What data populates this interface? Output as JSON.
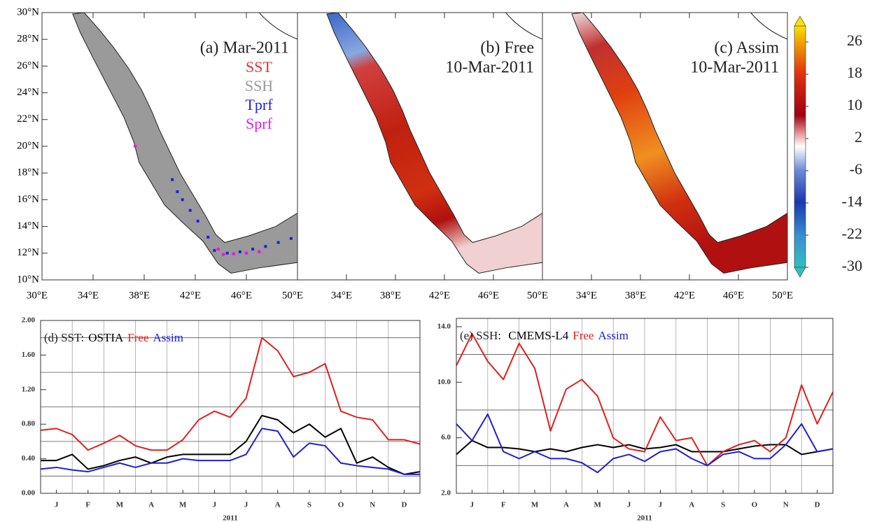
{
  "chart_data": [
    {
      "type": "map",
      "title": "(a) Mar-2011",
      "xlim": [
        30,
        50
      ],
      "ylim": [
        10,
        30
      ],
      "xticks": [
        {
          "value": 30,
          "label": "30°E"
        },
        {
          "value": 34,
          "label": "34°E"
        },
        {
          "value": 38,
          "label": "38°E"
        },
        {
          "value": 42,
          "label": "42°E"
        },
        {
          "value": 46,
          "label": "46°E"
        },
        {
          "value": 50,
          "label": "50°E"
        }
      ],
      "yticks": [
        {
          "value": 10,
          "label": "10°N"
        },
        {
          "value": 12,
          "label": "12°N"
        },
        {
          "value": 14,
          "label": "14°N"
        },
        {
          "value": 16,
          "label": "16°N"
        },
        {
          "value": 18,
          "label": "18°N"
        },
        {
          "value": 20,
          "label": "20°N"
        },
        {
          "value": 22,
          "label": "22°N"
        },
        {
          "value": 24,
          "label": "24°N"
        },
        {
          "value": 26,
          "label": "26°N"
        },
        {
          "value": 28,
          "label": "28°N"
        },
        {
          "value": 30,
          "label": "30°N"
        }
      ],
      "legend": [
        "SST",
        "SSH",
        "Tprf",
        "Sprf"
      ],
      "legend_colors": [
        "#e83030",
        "#9a9a9a",
        "#2020e0",
        "#e020e0"
      ]
    },
    {
      "type": "map",
      "title": "(b) Free",
      "subtitle": "10-Mar-2011",
      "xlim": [
        30,
        50
      ],
      "ylim": [
        10,
        30
      ],
      "xticks": [
        {
          "value": 34,
          "label": "34°E"
        },
        {
          "value": 38,
          "label": "38°E"
        },
        {
          "value": 42,
          "label": "42°E"
        },
        {
          "value": 46,
          "label": "46°E"
        },
        {
          "value": 50,
          "label": "50°E"
        }
      ]
    },
    {
      "type": "map",
      "title": "(c) Assim",
      "subtitle": "10-Mar-2011",
      "xlim": [
        30,
        50
      ],
      "ylim": [
        10,
        30
      ],
      "xticks": [
        {
          "value": 34,
          "label": "34°E"
        },
        {
          "value": 38,
          "label": "38°E"
        },
        {
          "value": 42,
          "label": "42°E"
        },
        {
          "value": 46,
          "label": "46°E"
        },
        {
          "value": 50,
          "label": "50°E"
        }
      ],
      "colorbar": {
        "lim": [
          -30,
          30
        ],
        "ticks": [
          26,
          18,
          10,
          2,
          -6,
          -14,
          -22,
          -30
        ]
      }
    },
    {
      "type": "line",
      "title": "(d) SST:",
      "xlabel": "2011",
      "xlim": [
        0,
        12
      ],
      "ylim": [
        0,
        2
      ],
      "xticks": [
        {
          "value": 0.5,
          "label": "J"
        },
        {
          "value": 1.5,
          "label": "F"
        },
        {
          "value": 2.5,
          "label": "M"
        },
        {
          "value": 3.5,
          "label": "A"
        },
        {
          "value": 4.5,
          "label": "M"
        },
        {
          "value": 5.5,
          "label": "J"
        },
        {
          "value": 6.5,
          "label": "J"
        },
        {
          "value": 7.5,
          "label": "A"
        },
        {
          "value": 8.5,
          "label": "S"
        },
        {
          "value": 9.5,
          "label": "O"
        },
        {
          "value": 10.5,
          "label": "N"
        },
        {
          "value": 11.5,
          "label": "D"
        }
      ],
      "yticks": [
        {
          "value": 0,
          "label": "0.00"
        },
        {
          "value": 0.4,
          "label": "0.40"
        },
        {
          "value": 0.8,
          "label": "0.80"
        },
        {
          "value": 1.2,
          "label": "1.20"
        },
        {
          "value": 1.6,
          "label": "1.60"
        },
        {
          "value": 2,
          "label": "2.00"
        }
      ],
      "ygrid": [
        0.2,
        0.6,
        1,
        1.4,
        1.8
      ],
      "x": [
        0,
        0.5,
        1,
        1.5,
        2,
        2.5,
        3,
        3.5,
        4,
        4.5,
        5,
        5.5,
        6,
        6.5,
        7,
        7.5,
        8,
        8.5,
        9,
        9.5,
        10,
        10.5,
        11,
        11.5,
        12
      ],
      "series": [
        {
          "name": "OSTIA",
          "color": "#000000",
          "values": [
            0.38,
            0.38,
            0.45,
            0.28,
            0.32,
            0.38,
            0.42,
            0.35,
            0.42,
            0.45,
            0.45,
            0.45,
            0.45,
            0.6,
            0.9,
            0.85,
            0.7,
            0.8,
            0.65,
            0.75,
            0.35,
            0.42,
            0.3,
            0.22,
            0.25
          ]
        },
        {
          "name": "Free",
          "color": "#e02020",
          "values": [
            0.73,
            0.75,
            0.68,
            0.5,
            0.58,
            0.67,
            0.55,
            0.5,
            0.5,
            0.62,
            0.85,
            0.95,
            0.88,
            1.1,
            1.8,
            1.65,
            1.35,
            1.4,
            1.5,
            0.95,
            0.88,
            0.85,
            0.62,
            0.62,
            0.57
          ]
        },
        {
          "name": "Assim",
          "color": "#2020d0",
          "values": [
            0.28,
            0.3,
            0.27,
            0.25,
            0.3,
            0.35,
            0.3,
            0.35,
            0.35,
            0.4,
            0.38,
            0.38,
            0.38,
            0.45,
            0.75,
            0.72,
            0.42,
            0.58,
            0.55,
            0.35,
            0.32,
            0.3,
            0.28,
            0.22,
            0.22
          ]
        }
      ]
    },
    {
      "type": "line",
      "title": "(e) SSH: ",
      "xlabel": "2011",
      "xlim": [
        0,
        12
      ],
      "ylim": [
        2,
        14.6
      ],
      "xticks": [
        {
          "value": 0.5,
          "label": "J"
        },
        {
          "value": 1.5,
          "label": "F"
        },
        {
          "value": 2.5,
          "label": "M"
        },
        {
          "value": 3.5,
          "label": "A"
        },
        {
          "value": 4.5,
          "label": "M"
        },
        {
          "value": 5.5,
          "label": "J"
        },
        {
          "value": 6.5,
          "label": "J"
        },
        {
          "value": 7.5,
          "label": "A"
        },
        {
          "value": 8.5,
          "label": "S"
        },
        {
          "value": 9.5,
          "label": "O"
        },
        {
          "value": 10.5,
          "label": "N"
        },
        {
          "value": 11.5,
          "label": "D"
        }
      ],
      "yticks": [
        {
          "value": 2,
          "label": "2.0"
        },
        {
          "value": 6,
          "label": "6.0"
        },
        {
          "value": 10,
          "label": "10.0"
        },
        {
          "value": 14,
          "label": "14.0"
        }
      ],
      "ygrid": [
        4,
        8,
        12
      ],
      "x": [
        0,
        0.5,
        1,
        1.5,
        2,
        2.5,
        3,
        3.5,
        4,
        4.5,
        5,
        5.5,
        6,
        6.5,
        7,
        7.5,
        8,
        8.5,
        9,
        9.5,
        10,
        10.5,
        11,
        11.5,
        12
      ],
      "series": [
        {
          "name": "CMEMS-L4",
          "color": "#000000",
          "values": [
            4.8,
            5.8,
            5.3,
            5.3,
            5.2,
            5,
            5.2,
            5,
            5.3,
            5.5,
            5.3,
            5.5,
            5.2,
            5.3,
            5.5,
            5,
            5,
            5,
            5.2,
            5.4,
            5.5,
            5.5,
            4.8,
            5,
            5.2
          ]
        },
        {
          "name": "Free",
          "color": "#e02020",
          "values": [
            11.2,
            13.5,
            11.5,
            10.2,
            12.8,
            11,
            6.5,
            9.5,
            10.2,
            9,
            6,
            5.2,
            5,
            7.5,
            5.8,
            6,
            4,
            5,
            5.5,
            5.8,
            5,
            6,
            9.8,
            7,
            9.3
          ]
        },
        {
          "name": "Assim",
          "color": "#2020d0",
          "values": [
            7,
            5.8,
            7.7,
            5,
            4.5,
            5,
            4.5,
            4.5,
            4.2,
            3.5,
            4.5,
            4.8,
            4.3,
            5,
            5.2,
            4.5,
            4,
            4.8,
            5,
            4.5,
            4.5,
            5.5,
            7,
            5,
            5.2
          ]
        }
      ]
    }
  ]
}
